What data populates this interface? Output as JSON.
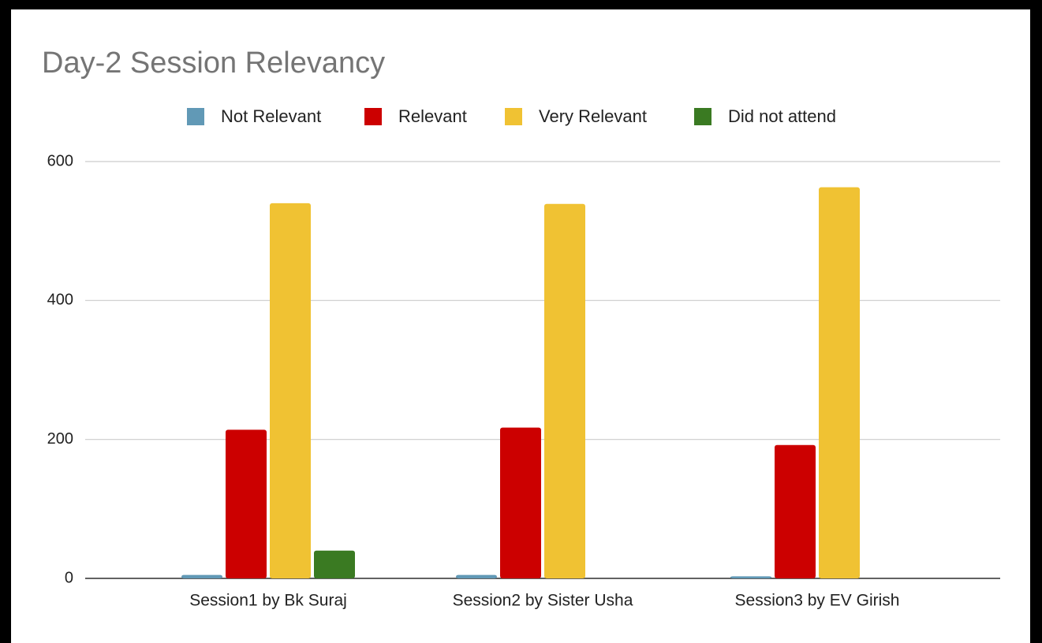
{
  "chart_data": {
    "type": "bar",
    "title": "Day-2 Session Relevancy",
    "categories": [
      "Session1 by Bk Suraj",
      "Session2 by Sister Usha",
      "Session3 by EV Girish"
    ],
    "series": [
      {
        "name": "Not Relevant",
        "color": "#6199b6",
        "values": [
          5,
          5,
          3
        ]
      },
      {
        "name": "Relevant",
        "color": "#cc0000",
        "values": [
          214,
          217,
          192
        ]
      },
      {
        "name": "Very Relevant",
        "color": "#f0c233",
        "values": [
          540,
          539,
          563
        ]
      },
      {
        "name": "Did not attend",
        "color": "#3a7a22",
        "values": [
          40,
          0,
          0
        ]
      }
    ],
    "ylim": [
      0,
      600
    ],
    "yticks": [
      0,
      200,
      400,
      600
    ],
    "grid": true,
    "legend": "top"
  }
}
